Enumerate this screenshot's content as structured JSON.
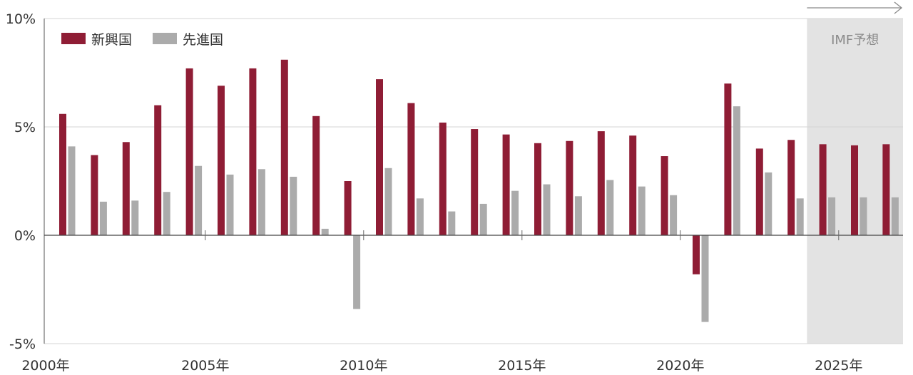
{
  "chart_data": {
    "type": "bar",
    "title": "",
    "xlabel": "",
    "ylabel": "",
    "ylim": [
      -5,
      10
    ],
    "y_ticks": [
      "10%",
      "5%",
      "0%",
      "-5%"
    ],
    "y_tick_values": [
      10,
      5,
      0,
      -5
    ],
    "x_tick_labels": [
      "2000年",
      "2005年",
      "2010年",
      "2015年",
      "2020年",
      "2025年"
    ],
    "x_tick_years": [
      2000,
      2005,
      2010,
      2015,
      2020,
      2025
    ],
    "categories": [
      2000,
      2001,
      2002,
      2003,
      2004,
      2005,
      2006,
      2007,
      2008,
      2009,
      2010,
      2011,
      2012,
      2013,
      2014,
      2015,
      2016,
      2017,
      2018,
      2019,
      2020,
      2021,
      2022,
      2023,
      2024,
      2025,
      2026
    ],
    "series": [
      {
        "name": "新興国",
        "color": "#8f1d35",
        "values": [
          5.6,
          3.7,
          4.3,
          6.0,
          7.7,
          6.9,
          7.7,
          8.1,
          5.5,
          2.5,
          7.2,
          6.1,
          5.2,
          4.9,
          4.65,
          4.25,
          4.35,
          4.8,
          4.6,
          3.65,
          -1.8,
          7.0,
          4.0,
          4.4,
          4.2,
          4.15,
          4.2
        ]
      },
      {
        "name": "先進国",
        "color": "#ababab",
        "values": [
          4.1,
          1.55,
          1.6,
          2.0,
          3.2,
          2.8,
          3.05,
          2.7,
          0.3,
          -3.4,
          3.1,
          1.7,
          1.1,
          1.45,
          2.05,
          2.35,
          1.8,
          2.55,
          2.25,
          1.85,
          -4.0,
          5.95,
          2.9,
          1.7,
          1.75,
          1.75,
          1.75
        ]
      }
    ],
    "forecast": {
      "label": "IMF予想",
      "from": 2024,
      "to": 2026,
      "shade_color": "#e3e3e3"
    },
    "grid": true,
    "legend_position": "top-left"
  }
}
